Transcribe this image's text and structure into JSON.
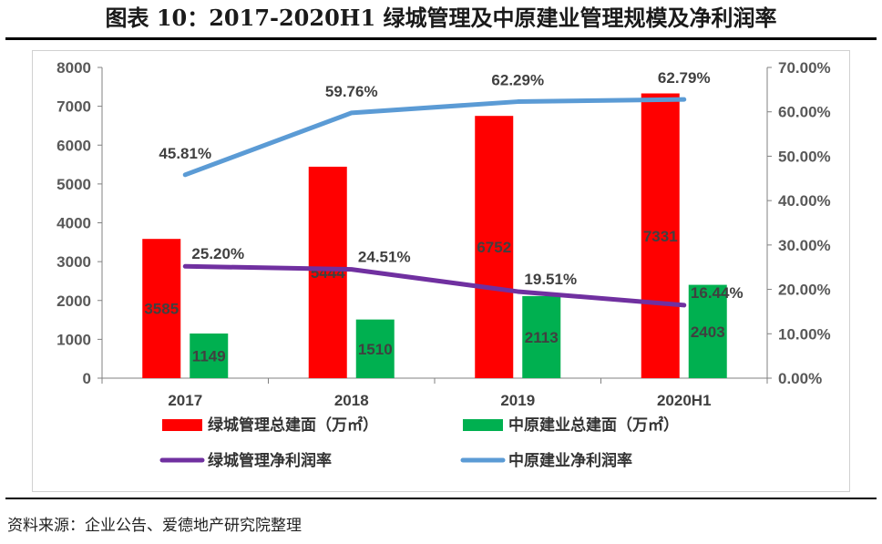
{
  "title": "图表 10：2017-2020H1 绿城管理及中原建业管理规模及净利润率",
  "source": "资料来源：企业公告、爱德地产研究院整理",
  "chart_data": {
    "type": "bar",
    "categories": [
      "2017",
      "2018",
      "2019",
      "2020H1"
    ],
    "bar_series": [
      {
        "name": "绿城管理总建面（万㎡）",
        "values": [
          3585,
          5444,
          6752,
          7331
        ],
        "color": "#ff0000",
        "labels": [
          "3585",
          "5444",
          "6752",
          "7331"
        ]
      },
      {
        "name": "中原建业总建面（万㎡）",
        "values": [
          1149,
          1510,
          2113,
          2403
        ],
        "color": "#00b050",
        "labels": [
          "1149",
          "1510",
          "2113",
          "2403"
        ]
      }
    ],
    "line_series": [
      {
        "name": "绿城管理净利润率",
        "values": [
          25.2,
          24.51,
          19.51,
          16.44
        ],
        "color": "#7030a0",
        "labels": [
          "25.20%",
          "24.51%",
          "19.51%",
          "16.44%"
        ]
      },
      {
        "name": "中原建业净利润率",
        "values": [
          45.81,
          59.76,
          62.29,
          62.79
        ],
        "color": "#5b9bd5",
        "labels": [
          "45.81%",
          "59.76%",
          "62.29%",
          "62.79%"
        ]
      }
    ],
    "y_left": {
      "min": 0,
      "max": 8000,
      "ticks": [
        "0",
        "1000",
        "2000",
        "3000",
        "4000",
        "5000",
        "6000",
        "7000",
        "8000"
      ]
    },
    "y_right": {
      "min": 0,
      "max": 70,
      "ticks": [
        "0.00%",
        "10.00%",
        "20.00%",
        "30.00%",
        "40.00%",
        "50.00%",
        "60.00%",
        "70.00%"
      ]
    },
    "grid": false,
    "legend_position": "bottom"
  }
}
